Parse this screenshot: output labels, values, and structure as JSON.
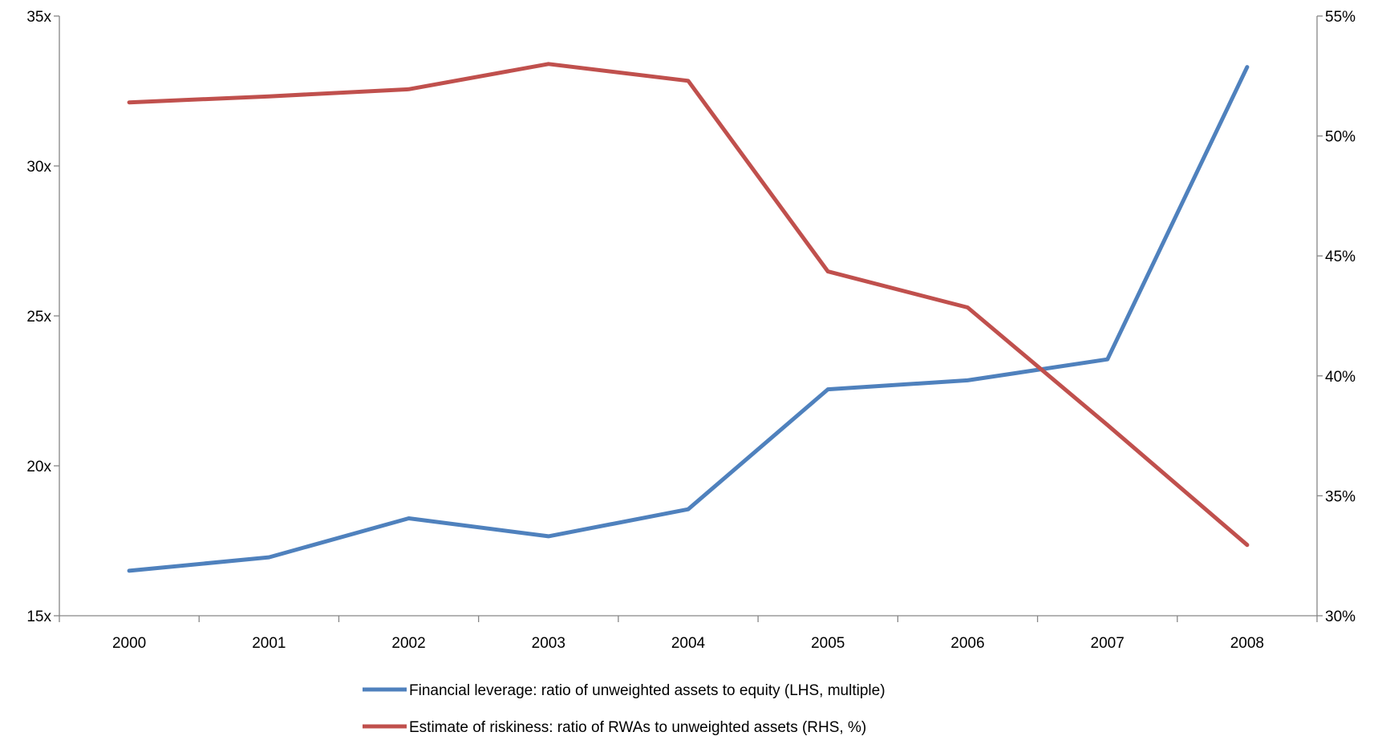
{
  "chart_data": {
    "type": "line",
    "categories": [
      "2000",
      "2001",
      "2002",
      "2003",
      "2004",
      "2005",
      "2006",
      "2007",
      "2008"
    ],
    "y_left": {
      "range": [
        15,
        35
      ],
      "ticks": [
        15,
        20,
        25,
        30,
        35
      ],
      "tick_labels": [
        "15x",
        "20x",
        "25x",
        "30x",
        "35x"
      ]
    },
    "y_right": {
      "range": [
        30,
        55
      ],
      "ticks": [
        30,
        35,
        40,
        45,
        50,
        55
      ],
      "tick_labels": [
        "30%",
        "35%",
        "40%",
        "45%",
        "50%",
        "55%"
      ]
    },
    "series": [
      {
        "name": "Financial leverage: ratio of unweighted assets to equity (LHS, multiple)",
        "axis": "left",
        "color": "#4F81BD",
        "values": [
          16.5,
          16.95,
          18.25,
          17.65,
          18.55,
          22.55,
          22.85,
          23.55,
          33.3
        ]
      },
      {
        "name": "Estimate of riskiness: ratio of RWAs to unweighted assets (RHS, %)",
        "axis": "right",
        "color": "#C0504D",
        "values": [
          51.4,
          51.65,
          51.95,
          53.0,
          52.3,
          44.35,
          42.85,
          37.95,
          32.95
        ]
      }
    ],
    "grid": false,
    "legend": "bottom"
  }
}
